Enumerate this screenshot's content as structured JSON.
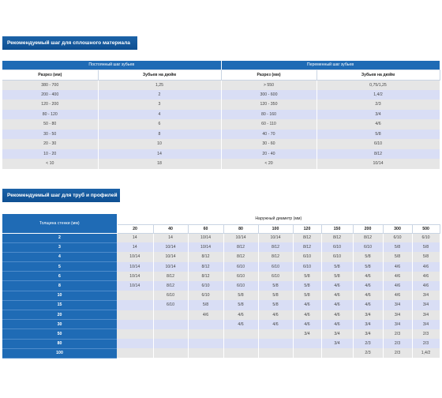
{
  "section1": {
    "title": "Рекомендуемый шаг для сплошного материала",
    "group_constant": "Постоянный шаг зубьев",
    "group_variable": "Переменный шаг зубьев",
    "col_cut1": "Разрез (мм)",
    "col_tpi1": "Зубьев на дюйм",
    "col_cut2": "Разрез (мм)",
    "col_tpi2": "Зубьев на дюйм",
    "rows": [
      [
        "380 - 700",
        "1,25",
        "> 550",
        "0,75/1,25"
      ],
      [
        "200 - 400",
        "2",
        "300 - 600",
        "1,4/2"
      ],
      [
        "120 - 200",
        "3",
        "120 - 350",
        "2/3"
      ],
      [
        "80 - 120",
        "4",
        "80 - 160",
        "3/4"
      ],
      [
        "50 - 80",
        "6",
        "60 - 110",
        "4/6"
      ],
      [
        "30 - 50",
        "8",
        "40 - 70",
        "5/8"
      ],
      [
        "20 - 30",
        "10",
        "30 - 60",
        "6/10"
      ],
      [
        "10 - 20",
        "14",
        "20 - 40",
        "8/12"
      ],
      [
        "< 10",
        "18",
        "< 20",
        "10/14"
      ]
    ]
  },
  "section2": {
    "title": "Рекомендуемый шаг для труб и профилей",
    "wall_header": "Толщина стенки (мм)",
    "diameter_header": "Наружный диаметр (мм)",
    "diameters": [
      "20",
      "40",
      "60",
      "80",
      "100",
      "120",
      "150",
      "200",
      "300",
      "500"
    ],
    "rows": [
      {
        "wall": "2",
        "cells": [
          "14",
          "14",
          "10/14",
          "10/14",
          "10/14",
          "8/12",
          "8/12",
          "8/12",
          "6/10",
          "6/10"
        ]
      },
      {
        "wall": "3",
        "cells": [
          "14",
          "10/14",
          "10/14",
          "8/12",
          "8/12",
          "8/12",
          "6/10",
          "6/10",
          "5/8",
          "5/8"
        ]
      },
      {
        "wall": "4",
        "cells": [
          "10/14",
          "10/14",
          "8/12",
          "8/12",
          "8/12",
          "6/10",
          "6/10",
          "5/8",
          "5/8",
          "5/8"
        ]
      },
      {
        "wall": "5",
        "cells": [
          "10/14",
          "10/14",
          "8/12",
          "6/10",
          "6/10",
          "6/10",
          "5/8",
          "5/8",
          "4/6",
          "4/6"
        ]
      },
      {
        "wall": "6",
        "cells": [
          "10/14",
          "8/12",
          "8/12",
          "6/10",
          "6/10",
          "5/8",
          "5/8",
          "4/6",
          "4/6",
          "4/6"
        ]
      },
      {
        "wall": "8",
        "cells": [
          "10/14",
          "8/12",
          "6/10",
          "6/10",
          "5/8",
          "5/8",
          "4/6",
          "4/6",
          "4/6",
          "4/6"
        ]
      },
      {
        "wall": "10",
        "cells": [
          "",
          "6/10",
          "6/10",
          "5/8",
          "5/8",
          "5/8",
          "4/6",
          "4/6",
          "4/6",
          "3/4"
        ]
      },
      {
        "wall": "15",
        "cells": [
          "",
          "6/10",
          "5/8",
          "5/8",
          "5/8",
          "4/6",
          "4/6",
          "4/6",
          "3/4",
          "3/4"
        ]
      },
      {
        "wall": "20",
        "cells": [
          "",
          "",
          "4/6",
          "4/6",
          "4/6",
          "4/6",
          "4/6",
          "3/4",
          "3/4",
          "3/4"
        ]
      },
      {
        "wall": "30",
        "cells": [
          "",
          "",
          "",
          "4/6",
          "4/6",
          "4/6",
          "4/6",
          "3/4",
          "3/4",
          "3/4"
        ]
      },
      {
        "wall": "50",
        "cells": [
          "",
          "",
          "",
          "",
          "",
          "3/4",
          "3/4",
          "3/4",
          "2/3",
          "2/3"
        ]
      },
      {
        "wall": "80",
        "cells": [
          "",
          "",
          "",
          "",
          "",
          "",
          "3/4",
          "2/3",
          "2/3",
          "2/3"
        ]
      },
      {
        "wall": "100",
        "cells": [
          "",
          "",
          "",
          "",
          "",
          "",
          "",
          "2/3",
          "2/3",
          "1,4/2"
        ]
      }
    ]
  }
}
